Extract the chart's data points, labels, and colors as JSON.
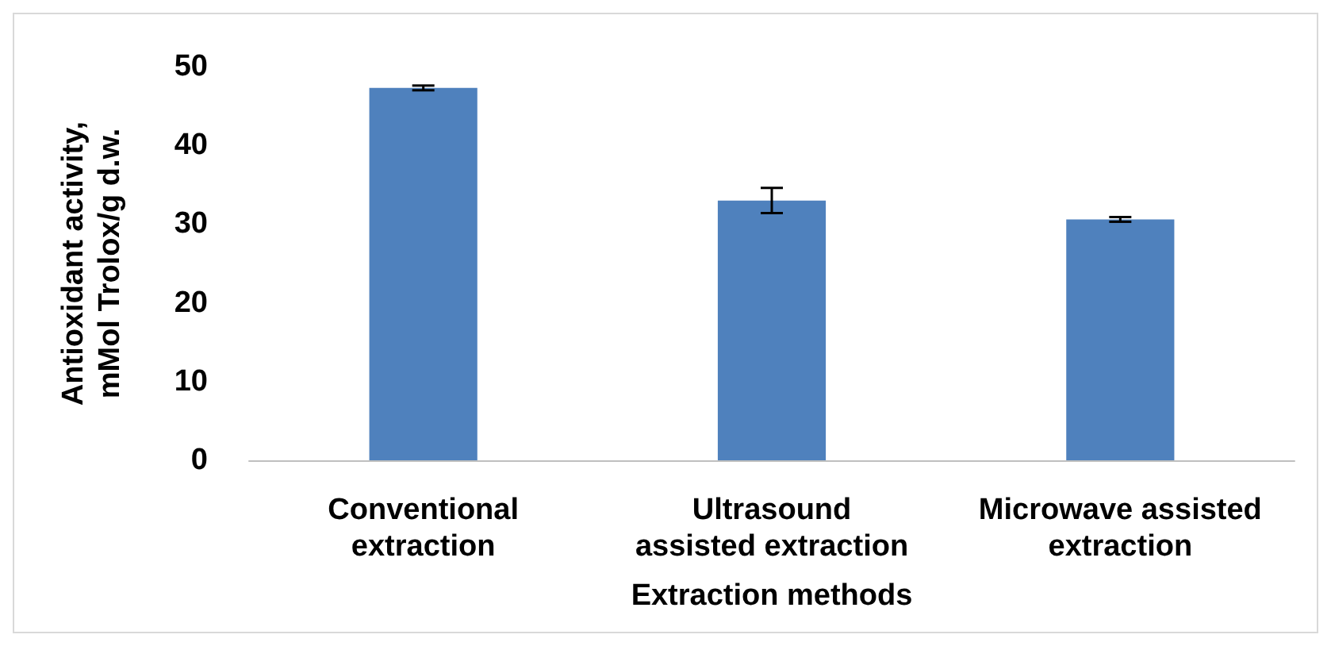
{
  "chart_data": {
    "type": "bar",
    "xlabel": "Extraction methods",
    "ylabel": "Antioxidant activity,\nmMol Trolox/g d.w.",
    "categories": [
      "Conventional\nextraction",
      "Ultrasound\nassisted extraction",
      "Microwave assisted\nextraction"
    ],
    "values": [
      47.3,
      33.0,
      30.6
    ],
    "errors": [
      0.3,
      1.6,
      0.3
    ],
    "color": "#4f81bd",
    "ylim": [
      0,
      50
    ],
    "yticks": [
      0,
      10,
      20,
      30,
      40,
      50
    ],
    "grid": false
  }
}
